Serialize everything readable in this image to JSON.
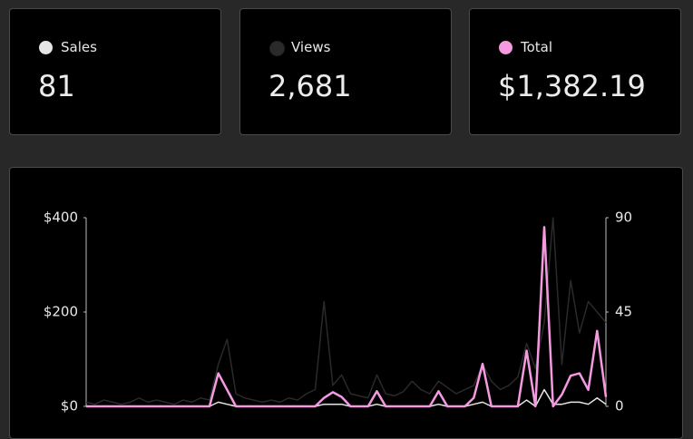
{
  "cards": [
    {
      "value": "81"
    },
    {
      "value": "2,681"
    },
    {
      "value": "$1,382.19"
    }
  ],
  "chart_data": {
    "type": "line",
    "categories": [
      null,
      null,
      null,
      null,
      null,
      null,
      null,
      null,
      null,
      null,
      null,
      null,
      null,
      null,
      null,
      null,
      null,
      null,
      null,
      null,
      null,
      null,
      null,
      null,
      null,
      null,
      null,
      null,
      null,
      null,
      null,
      null,
      null,
      null,
      null,
      null,
      null,
      null,
      null,
      null,
      null,
      null,
      null,
      null,
      null,
      null,
      null,
      null,
      null,
      null,
      null,
      null,
      null,
      null,
      null,
      null,
      null,
      null,
      null,
      null
    ],
    "series": [
      {
        "name": "Sales",
        "color": "#e6e6e6",
        "axis": "y2",
        "values": [
          0,
          0,
          0,
          0,
          0,
          0,
          0,
          0,
          0,
          0,
          0,
          0,
          0,
          0,
          0,
          2,
          1,
          0,
          0,
          0,
          0,
          0,
          0,
          0,
          0,
          0,
          0,
          1,
          1,
          1,
          0,
          0,
          0,
          1,
          0,
          0,
          0,
          0,
          0,
          0,
          1,
          0,
          0,
          0,
          1,
          2,
          0,
          0,
          0,
          0,
          3,
          0,
          8,
          1,
          1,
          2,
          2,
          1,
          4,
          1
        ]
      },
      {
        "name": "Views",
        "color": "#2a2a2a",
        "axis": "y2",
        "values": [
          2,
          1,
          3,
          2,
          1,
          2,
          4,
          2,
          3,
          2,
          1,
          3,
          2,
          4,
          3,
          20,
          32,
          6,
          4,
          3,
          2,
          3,
          2,
          4,
          3,
          6,
          8,
          50,
          10,
          15,
          6,
          5,
          4,
          15,
          6,
          5,
          7,
          12,
          8,
          6,
          12,
          9,
          6,
          8,
          10,
          20,
          12,
          8,
          10,
          14,
          30,
          18,
          40,
          90,
          20,
          60,
          35,
          50,
          45,
          40
        ]
      },
      {
        "name": "Total",
        "color": "#f59ae0",
        "values": [
          0,
          0,
          0,
          0,
          0,
          0,
          0,
          0,
          0,
          0,
          0,
          0,
          0,
          0,
          0,
          70,
          35,
          0,
          0,
          0,
          0,
          0,
          0,
          0,
          0,
          0,
          0,
          18,
          30,
          20,
          0,
          0,
          0,
          32,
          0,
          0,
          0,
          0,
          0,
          0,
          32,
          0,
          0,
          0,
          18,
          90,
          0,
          0,
          0,
          0,
          118,
          0,
          380,
          0,
          25,
          65,
          70,
          35,
          160,
          20
        ]
      }
    ],
    "ylim": [
      0,
      400
    ],
    "yticks": [
      {
        "value": 0,
        "label": "$0"
      },
      {
        "value": 200,
        "label": "$200"
      },
      {
        "value": 400,
        "label": "$400"
      }
    ],
    "y2lim": [
      0,
      90
    ],
    "y2ticks": [
      0,
      45,
      90
    ]
  }
}
